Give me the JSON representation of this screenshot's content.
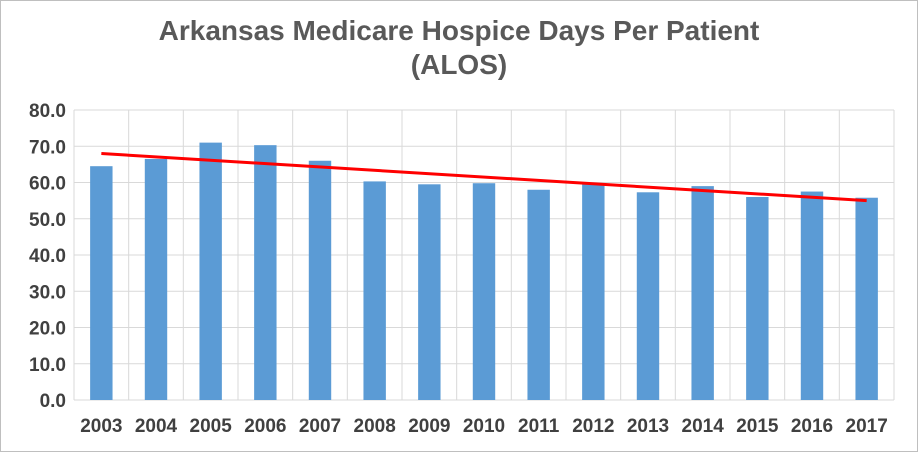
{
  "chart_data": {
    "type": "bar",
    "title_line1": "Arkansas Medicare Hospice Days Per Patient",
    "title_line2": "(ALOS)",
    "categories": [
      "2003",
      "2004",
      "2005",
      "2006",
      "2007",
      "2008",
      "2009",
      "2010",
      "2011",
      "2012",
      "2013",
      "2014",
      "2015",
      "2016",
      "2017"
    ],
    "series": [
      {
        "values": [
          64.5,
          66.5,
          71.0,
          70.3,
          66.0,
          60.3,
          59.5,
          59.8,
          58.0,
          59.8,
          57.3,
          59.0,
          56.0,
          57.5,
          55.8
        ],
        "color": "#5b9bd5"
      }
    ],
    "trendline": {
      "type": "linear",
      "start": 68.0,
      "end": 55.0,
      "color": "#ff0000"
    },
    "ylim": [
      0,
      80
    ],
    "yticks": [
      "0.0",
      "10.0",
      "20.0",
      "30.0",
      "40.0",
      "50.0",
      "60.0",
      "70.0",
      "80.0"
    ],
    "grid": true,
    "legend": "none"
  }
}
